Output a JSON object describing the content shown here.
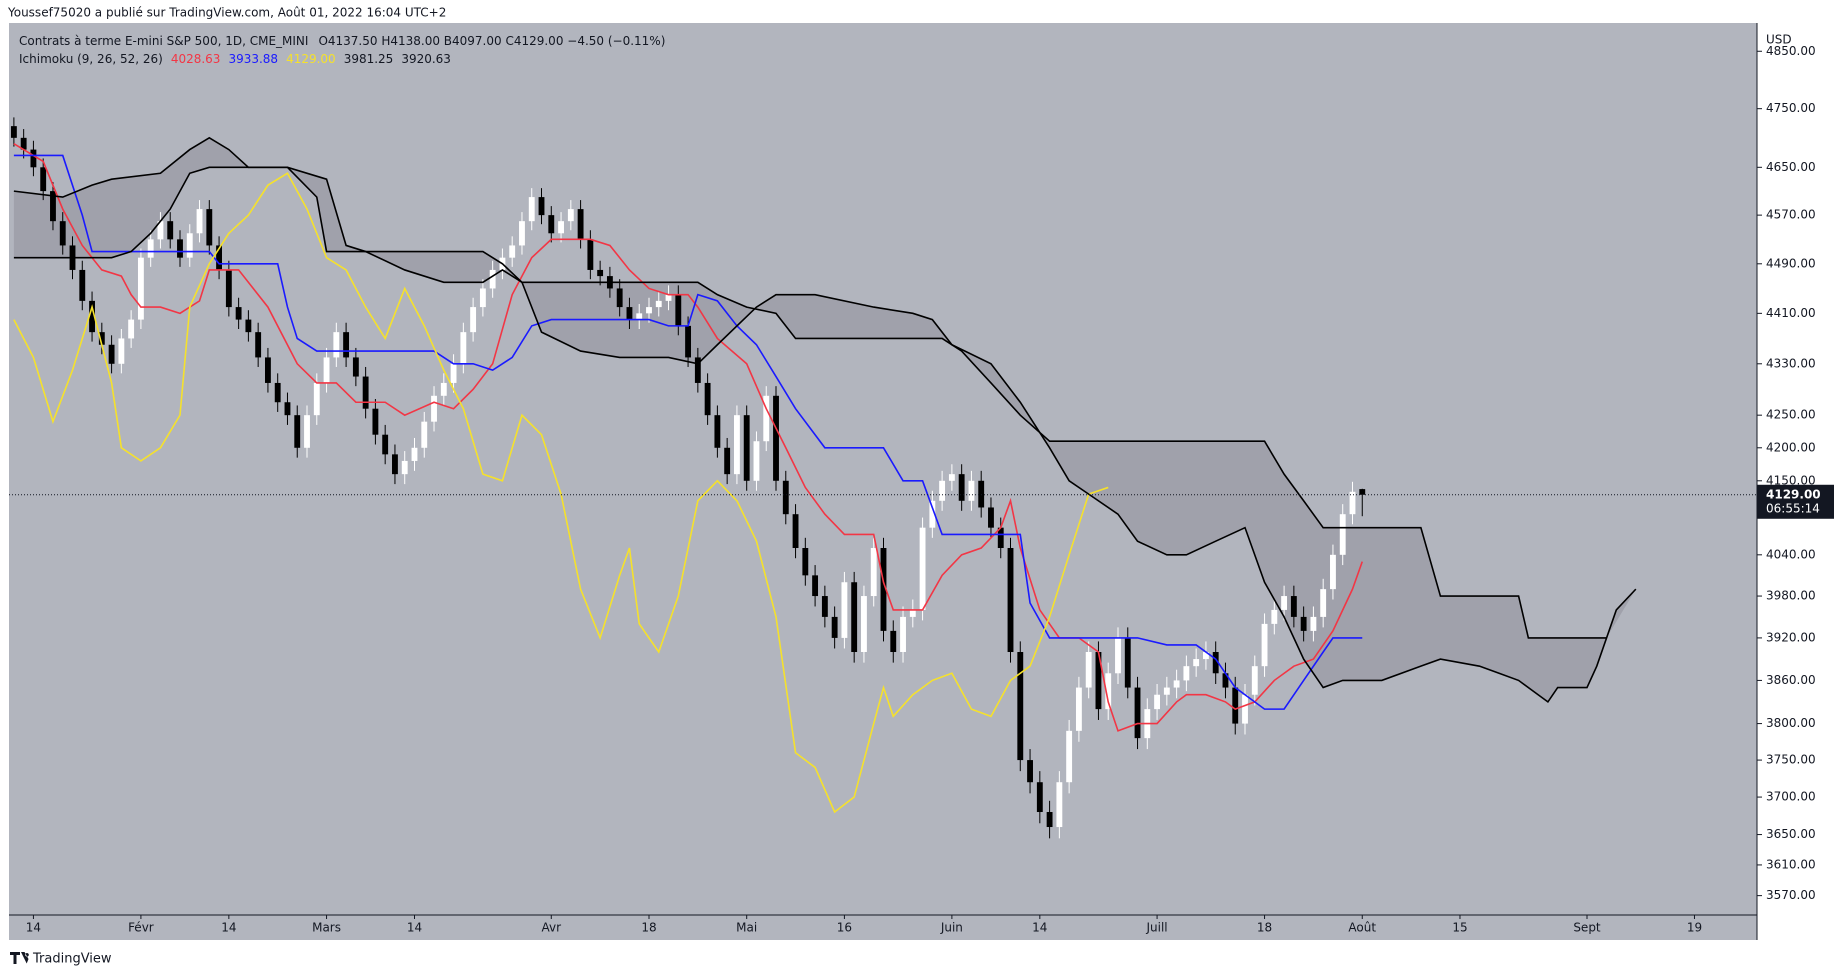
{
  "header": "Youssef75020 a publié sur TradingView.com, Août 01, 2022 16:04 UTC+2",
  "footer": "TradingView",
  "chart_data": {
    "type": "candlestick",
    "title": "Contrats à terme E-mini S&P 500, 1D, CME_MINI",
    "ohlc_text": "O4137.50 H4138.00 B4097.00 C4129.00 −4.50 (−0.11%)",
    "indicator": {
      "name": "Ichimoku (9, 26, 52, 26)",
      "values": [
        {
          "text": "4028.63",
          "color": "#f23645"
        },
        {
          "text": "3933.88",
          "color": "#1a1aff"
        },
        {
          "text": "4129.00",
          "color": "#f5e12c"
        },
        {
          "text": "3981.25",
          "color": "#131722"
        },
        {
          "text": "3920.63",
          "color": "#131722"
        }
      ]
    },
    "currency": "USD",
    "last_price": {
      "value": 4129,
      "label": "4129.00",
      "countdown": "06:55:14"
    },
    "log": true,
    "up_color": "#ffffff",
    "down_color": "#000000",
    "background": "#b2b5be",
    "cloud_color": "#999ba4",
    "open": [
      4720,
      4700,
      4680,
      4650,
      4610,
      4560,
      4520,
      4480,
      4430,
      4380,
      4360,
      4330,
      4370,
      4400,
      4500,
      4530,
      4560,
      4530,
      4500,
      4540,
      4580,
      4520,
      4480,
      4420,
      4400,
      4380,
      4340,
      4300,
      4270,
      4250,
      4200,
      4250,
      4300,
      4340,
      4380,
      4340,
      4310,
      4260,
      4220,
      4190,
      4160,
      4180,
      4200,
      4240,
      4280,
      4300,
      4330,
      4380,
      4420,
      4450,
      4480,
      4500,
      4520,
      4560,
      4600,
      4570,
      4540,
      4560,
      4580,
      4530,
      4480,
      4470,
      4450,
      4420,
      4400,
      4410,
      4420,
      4430,
      4440,
      4390,
      4340,
      4300,
      4250,
      4200,
      4160,
      4250,
      4150,
      4210,
      4280,
      4150,
      4100,
      4050,
      4010,
      3980,
      3950,
      3920,
      4000,
      3900,
      3980,
      4050,
      3930,
      3900,
      3950,
      3960,
      4080,
      4120,
      4150,
      4160,
      4120,
      4150,
      4110,
      4080,
      4050,
      3900,
      3750,
      3720,
      3680,
      3660,
      3720,
      3790,
      3850,
      3900,
      3820,
      3870,
      3920,
      3850,
      3780,
      3820,
      3840,
      3850,
      3860,
      3880,
      3890,
      3900,
      3870,
      3850,
      3800,
      3840,
      3880,
      3940,
      3960,
      3980,
      3950,
      3930,
      3950,
      3990,
      4040,
      4100,
      4137.5
    ],
    "high": [
      4735,
      4715,
      4695,
      4665,
      4625,
      4575,
      4535,
      4495,
      4445,
      4395,
      4375,
      4385,
      4415,
      4515,
      4545,
      4575,
      4575,
      4545,
      4555,
      4595,
      4595,
      4535,
      4495,
      4435,
      4415,
      4395,
      4355,
      4315,
      4285,
      4265,
      4265,
      4315,
      4355,
      4395,
      4395,
      4355,
      4325,
      4275,
      4235,
      4205,
      4195,
      4215,
      4255,
      4295,
      4315,
      4345,
      4395,
      4435,
      4465,
      4495,
      4515,
      4535,
      4575,
      4615,
      4615,
      4585,
      4575,
      4595,
      4595,
      4545,
      4495,
      4485,
      4465,
      4435,
      4425,
      4435,
      4445,
      4455,
      4455,
      4405,
      4355,
      4315,
      4265,
      4215,
      4265,
      4265,
      4225,
      4295,
      4295,
      4165,
      4115,
      4065,
      4025,
      3995,
      3965,
      4015,
      4015,
      3995,
      4065,
      4065,
      3945,
      3965,
      3975,
      4095,
      4135,
      4165,
      4175,
      4175,
      4165,
      4165,
      4125,
      4095,
      4065,
      3915,
      3765,
      3735,
      3695,
      3735,
      3805,
      3865,
      3915,
      3915,
      3885,
      3935,
      3935,
      3865,
      3835,
      3855,
      3865,
      3875,
      3895,
      3905,
      3915,
      3915,
      3885,
      3865,
      3855,
      3895,
      3955,
      3975,
      3995,
      3995,
      3965,
      3965,
      4005,
      4055,
      4115,
      4148.5,
      4138
    ],
    "low": [
      4685,
      4665,
      4635,
      4595,
      4545,
      4505,
      4465,
      4415,
      4365,
      4345,
      4315,
      4315,
      4355,
      4385,
      4485,
      4515,
      4515,
      4485,
      4485,
      4525,
      4505,
      4465,
      4405,
      4385,
      4365,
      4325,
      4285,
      4255,
      4235,
      4185,
      4185,
      4235,
      4285,
      4325,
      4325,
      4295,
      4245,
      4205,
      4175,
      4145,
      4145,
      4165,
      4185,
      4225,
      4265,
      4285,
      4315,
      4365,
      4405,
      4435,
      4465,
      4485,
      4505,
      4545,
      4555,
      4525,
      4525,
      4545,
      4515,
      4465,
      4455,
      4435,
      4405,
      4385,
      4385,
      4395,
      4405,
      4415,
      4375,
      4325,
      4285,
      4235,
      4185,
      4145,
      4145,
      4135,
      4135,
      4195,
      4135,
      4085,
      4035,
      3995,
      3965,
      3935,
      3905,
      3905,
      3885,
      3885,
      3965,
      3915,
      3885,
      3885,
      3935,
      3945,
      4065,
      4105,
      4135,
      4105,
      4105,
      4095,
      4065,
      4035,
      3885,
      3735,
      3705,
      3665,
      3645,
      3645,
      3705,
      3775,
      3835,
      3805,
      3805,
      3855,
      3835,
      3765,
      3765,
      3805,
      3825,
      3835,
      3845,
      3865,
      3875,
      3855,
      3835,
      3785,
      3785,
      3825,
      3865,
      3925,
      3945,
      3935,
      3915,
      3915,
      3935,
      3975,
      4025,
      4085,
      4097
    ],
    "close": [
      4700,
      4680,
      4650,
      4610,
      4560,
      4520,
      4480,
      4430,
      4380,
      4360,
      4330,
      4370,
      4400,
      4500,
      4530,
      4560,
      4530,
      4500,
      4540,
      4580,
      4520,
      4480,
      4420,
      4400,
      4380,
      4340,
      4300,
      4270,
      4250,
      4200,
      4250,
      4300,
      4340,
      4380,
      4340,
      4310,
      4260,
      4220,
      4190,
      4160,
      4180,
      4200,
      4240,
      4280,
      4300,
      4330,
      4380,
      4420,
      4450,
      4480,
      4500,
      4520,
      4560,
      4600,
      4570,
      4540,
      4560,
      4580,
      4530,
      4480,
      4470,
      4450,
      4420,
      4400,
      4410,
      4420,
      4430,
      4440,
      4390,
      4340,
      4300,
      4250,
      4200,
      4160,
      4250,
      4150,
      4210,
      4280,
      4150,
      4100,
      4050,
      4010,
      3980,
      3950,
      3920,
      4000,
      3900,
      3980,
      4050,
      3930,
      3900,
      3950,
      3960,
      4080,
      4120,
      4150,
      4160,
      4120,
      4150,
      4110,
      4080,
      4050,
      3900,
      3750,
      3720,
      3680,
      3660,
      3720,
      3790,
      3850,
      3900,
      3820,
      3870,
      3920,
      3850,
      3780,
      3820,
      3840,
      3850,
      3860,
      3880,
      3890,
      3900,
      3870,
      3850,
      3800,
      3840,
      3880,
      3940,
      3960,
      3980,
      3950,
      3930,
      3950,
      3990,
      4040,
      4100,
      4133.5,
      4129
    ],
    "lines": [
      {
        "color": "#f23645",
        "x": [
          0,
          3,
          5,
          7,
          9,
          11,
          12,
          13,
          15,
          17,
          19,
          20,
          23,
          26,
          29,
          31,
          33,
          35,
          38,
          40,
          43,
          45,
          47,
          49,
          51,
          53,
          55,
          59,
          61,
          63,
          65,
          67,
          69,
          70,
          72,
          75,
          77,
          79,
          81,
          83,
          85,
          88,
          89,
          90,
          93,
          95,
          97,
          99,
          101,
          102,
          103,
          105,
          107,
          109,
          111,
          112,
          113,
          115,
          117,
          119,
          120,
          122,
          124,
          125,
          127,
          129,
          131,
          133,
          135,
          137,
          138
        ],
        "values": [
          4690,
          4660,
          4580,
          4520,
          4480,
          4470,
          4440,
          4420,
          4420,
          4410,
          4430,
          4480,
          4480,
          4420,
          4330,
          4300,
          4300,
          4270,
          4270,
          4250,
          4270,
          4260,
          4290,
          4330,
          4440,
          4500,
          4530,
          4530,
          4520,
          4480,
          4450,
          4440,
          4440,
          4420,
          4370,
          4330,
          4260,
          4200,
          4140,
          4100,
          4070,
          4070,
          4000,
          3960,
          3960,
          4010,
          4040,
          4050,
          4080,
          4120,
          4050,
          3960,
          3920,
          3920,
          3900,
          3830,
          3790,
          3800,
          3800,
          3830,
          3840,
          3840,
          3830,
          3820,
          3830,
          3860,
          3880,
          3890,
          3930,
          3990,
          4030
        ]
      },
      {
        "color": "#1a1aff",
        "x": [
          0,
          5,
          7,
          8,
          10,
          15,
          20,
          21,
          27,
          28,
          29,
          31,
          35,
          43,
          45,
          47,
          49,
          51,
          53,
          55,
          65,
          67,
          69,
          70,
          72,
          74,
          76,
          78,
          80,
          83,
          89,
          91,
          93,
          95,
          97,
          103,
          104,
          106,
          115,
          118,
          121,
          123,
          125,
          126,
          128,
          130,
          132,
          134,
          135,
          138
        ],
        "values": [
          4670,
          4670,
          4570,
          4510,
          4510,
          4510,
          4510,
          4490,
          4490,
          4420,
          4370,
          4350,
          4350,
          4350,
          4330,
          4330,
          4320,
          4340,
          4390,
          4400,
          4400,
          4390,
          4390,
          4440,
          4430,
          4390,
          4360,
          4310,
          4260,
          4200,
          4200,
          4150,
          4150,
          4070,
          4070,
          4070,
          3970,
          3920,
          3920,
          3910,
          3910,
          3890,
          3850,
          3840,
          3820,
          3820,
          3860,
          3900,
          3920,
          3920
        ]
      },
      {
        "color": "#f5e12c",
        "x": [
          0,
          2,
          4,
          6,
          8,
          10,
          11,
          13,
          15,
          17,
          18,
          20,
          22,
          24,
          26,
          28,
          30,
          32,
          34,
          36,
          38,
          40,
          42,
          44,
          46,
          48,
          50,
          52,
          54,
          56,
          58,
          60,
          62,
          63,
          64,
          66,
          68,
          70,
          72,
          74,
          76,
          78,
          80,
          82,
          84,
          86,
          88,
          89,
          90,
          92,
          94,
          96,
          98,
          100,
          102,
          104,
          106,
          108,
          110,
          112
        ],
        "values": [
          4400,
          4340,
          4240,
          4320,
          4420,
          4300,
          4200,
          4180,
          4200,
          4250,
          4420,
          4490,
          4540,
          4570,
          4620,
          4640,
          4580,
          4500,
          4480,
          4420,
          4370,
          4450,
          4390,
          4320,
          4260,
          4160,
          4150,
          4250,
          4220,
          4130,
          3990,
          3920,
          4010,
          4050,
          3940,
          3900,
          3980,
          4120,
          4150,
          4120,
          4060,
          3950,
          3760,
          3740,
          3680,
          3700,
          3800,
          3850,
          3810,
          3840,
          3860,
          3870,
          3820,
          3810,
          3860,
          3880,
          3950,
          4040,
          4130,
          4140
        ]
      },
      {
        "color": "#000000",
        "x": [
          0,
          5,
          8,
          10,
          15,
          18,
          20,
          22,
          24,
          28,
          32,
          34,
          36,
          40,
          44,
          48,
          50,
          52,
          54,
          58,
          62,
          67,
          70,
          72,
          76,
          78,
          82,
          88,
          92,
          94,
          96,
          100,
          103,
          106,
          108,
          110,
          113,
          115,
          118,
          120,
          123,
          126,
          128,
          130,
          132,
          134,
          136,
          140,
          144,
          146,
          150,
          152,
          154,
          156,
          157,
          158,
          161,
          162,
          164,
          166
        ],
        "values": [
          4610,
          4600,
          4620,
          4630,
          4640,
          4680,
          4700,
          4680,
          4650,
          4650,
          4630,
          4520,
          4510,
          4480,
          4460,
          4460,
          4480,
          4460,
          4380,
          4350,
          4340,
          4340,
          4330,
          4360,
          4420,
          4440,
          4440,
          4420,
          4410,
          4400,
          4360,
          4330,
          4270,
          4200,
          4150,
          4130,
          4100,
          4060,
          4040,
          4040,
          4060,
          4080,
          4000,
          3950,
          3890,
          3850,
          3860,
          3860,
          3880,
          3890,
          3880,
          3870,
          3860,
          3840,
          3830,
          3850,
          3850,
          3880,
          3960,
          3990
        ]
      },
      {
        "color": "#000000",
        "x": [
          0,
          6,
          10,
          12,
          14,
          16,
          18,
          20,
          28,
          31,
          32,
          36,
          40,
          48,
          50,
          52,
          54,
          62,
          70,
          72,
          75,
          78,
          80,
          82,
          90,
          95,
          97,
          100,
          103,
          106,
          108,
          128,
          130,
          132,
          134,
          144,
          146,
          152,
          154,
          155,
          160,
          163
        ],
        "values": [
          4500,
          4500,
          4500,
          4510,
          4540,
          4580,
          4640,
          4650,
          4650,
          4600,
          4510,
          4510,
          4510,
          4510,
          4490,
          4460,
          4460,
          4460,
          4460,
          4440,
          4420,
          4410,
          4370,
          4370,
          4370,
          4370,
          4350,
          4300,
          4250,
          4210,
          4210,
          4210,
          4160,
          4120,
          4080,
          4080,
          3980,
          3980,
          3980,
          3920,
          3920,
          3920
        ]
      }
    ],
    "xlim": [
      -0.5,
      178.4
    ],
    "ylim": [
      3545,
      4900
    ],
    "xticks": [
      {
        "value": 2,
        "label": "14"
      },
      {
        "value": 13,
        "label": "Févr"
      },
      {
        "value": 22,
        "label": "14"
      },
      {
        "value": 32,
        "label": "Mars"
      },
      {
        "value": 41,
        "label": "14"
      },
      {
        "value": 55,
        "label": "Avr"
      },
      {
        "value": 65,
        "label": "18"
      },
      {
        "value": 75,
        "label": "Mai"
      },
      {
        "value": 85,
        "label": "16"
      },
      {
        "value": 96,
        "label": "Juin"
      },
      {
        "value": 105,
        "label": "14"
      },
      {
        "value": 117,
        "label": "Juill"
      },
      {
        "value": 128,
        "label": "18"
      },
      {
        "value": 138,
        "label": "Août"
      },
      {
        "value": 148,
        "label": "15"
      },
      {
        "value": 161,
        "label": "Sept"
      },
      {
        "value": 172,
        "label": "19"
      }
    ],
    "yticks": [
      {
        "value": 4850,
        "label": "4850.00"
      },
      {
        "value": 4750,
        "label": "4750.00"
      },
      {
        "value": 4650,
        "label": "4650.00"
      },
      {
        "value": 4570,
        "label": "4570.00"
      },
      {
        "value": 4490,
        "label": "4490.00"
      },
      {
        "value": 4410,
        "label": "4410.00"
      },
      {
        "value": 4330,
        "label": "4330.00"
      },
      {
        "value": 4250,
        "label": "4250.00"
      },
      {
        "value": 4200,
        "label": "4200.00"
      },
      {
        "value": 4150,
        "label": "4150.00"
      },
      {
        "value": 4040,
        "label": "4040.00"
      },
      {
        "value": 3980,
        "label": "3980.00"
      },
      {
        "value": 3920,
        "label": "3920.00"
      },
      {
        "value": 3860,
        "label": "3860.00"
      },
      {
        "value": 3800,
        "label": "3800.00"
      },
      {
        "value": 3750,
        "label": "3750.00"
      },
      {
        "value": 3700,
        "label": "3700.00"
      },
      {
        "value": 3650,
        "label": "3650.00"
      },
      {
        "value": 3610,
        "label": "3610.00"
      },
      {
        "value": 3570,
        "label": "3570.00"
      }
    ]
  }
}
